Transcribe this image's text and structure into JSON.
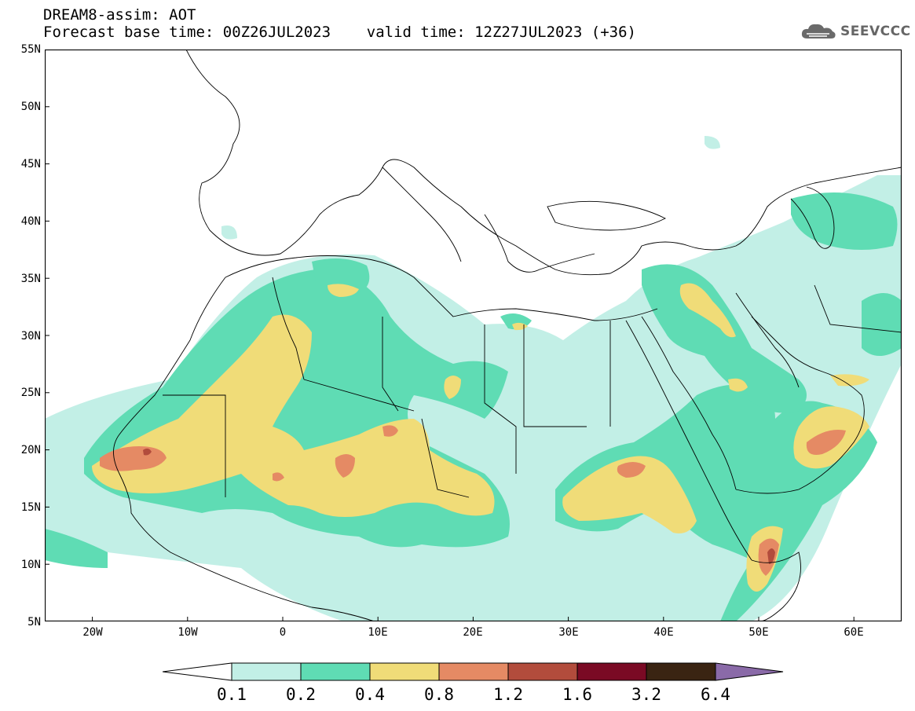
{
  "header": {
    "line1": "DREAM8-assim: AOT",
    "line2": "Forecast base time: 00Z26JUL2023    valid time: 12Z27JUL2023 (+36)"
  },
  "logo": {
    "text": "SEEVCCC",
    "icon": "cloud-icon"
  },
  "map": {
    "lat_labels": [
      "55N",
      "50N",
      "45N",
      "40N",
      "35N",
      "30N",
      "25N",
      "20N",
      "15N",
      "10N",
      "5N"
    ],
    "lon_labels": [
      "20W",
      "10W",
      "0",
      "10E",
      "20E",
      "30E",
      "40E",
      "50E",
      "60E"
    ],
    "extent": {
      "lon_min": -25,
      "lon_max": 65,
      "lat_min": 5,
      "lat_max": 55
    }
  },
  "colorbar": {
    "labels": [
      "0.1",
      "0.2",
      "0.4",
      "0.8",
      "1.2",
      "1.6",
      "3.2",
      "6.4"
    ],
    "colors": [
      "#c2efe6",
      "#5fdcb4",
      "#f0dc78",
      "#e58a64",
      "#b24c3c",
      "#7a0a24",
      "#3a2412",
      "#8a6aa8"
    ]
  },
  "aot_levels": {
    "c1": "#c2efe6",
    "c2": "#5fdcb4",
    "c3": "#f0dc78",
    "c4": "#e58a64",
    "c5": "#b24c3c"
  }
}
